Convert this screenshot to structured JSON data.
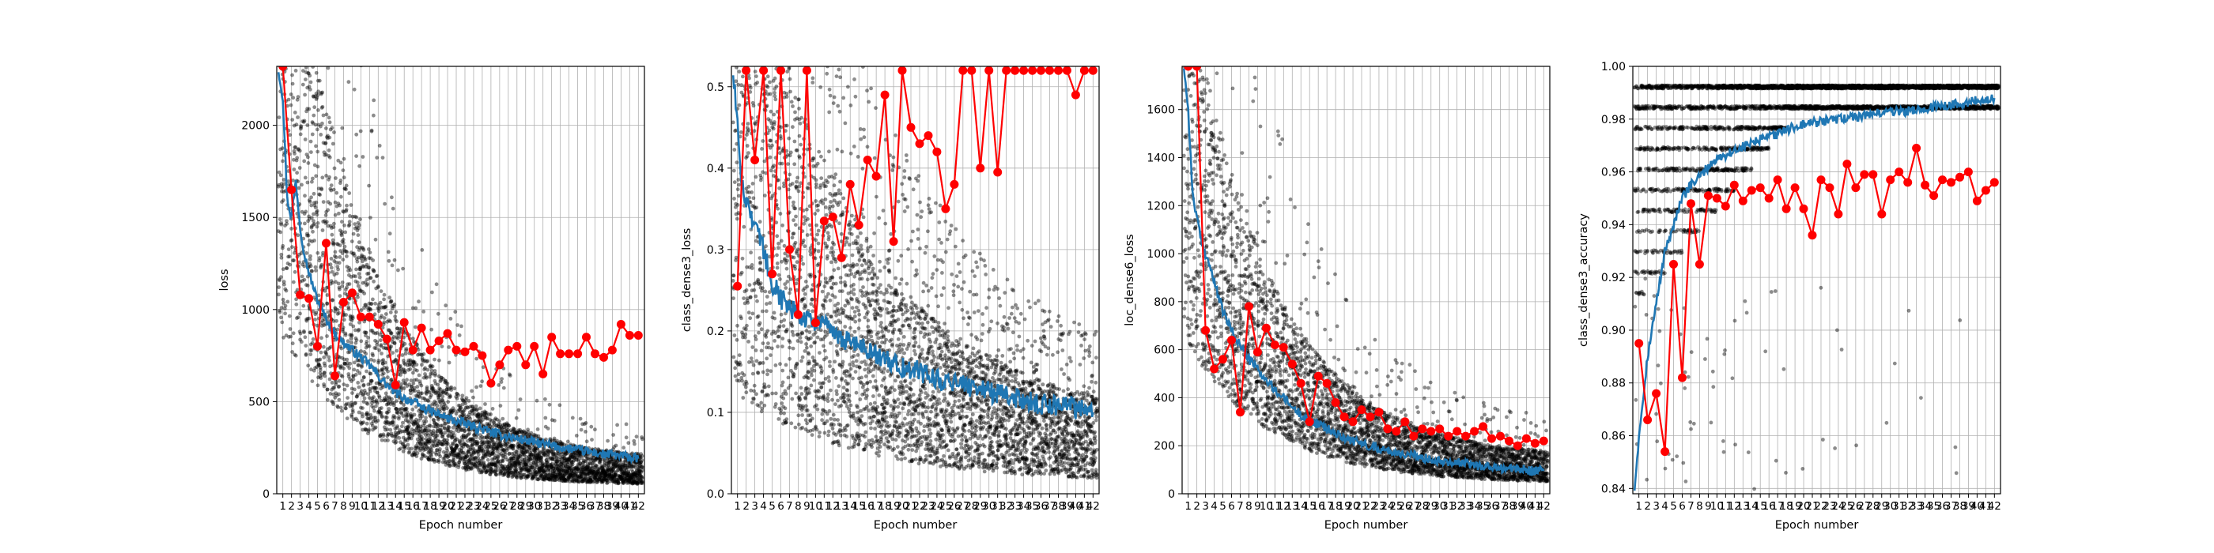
{
  "figure": {
    "colors": {
      "train": "#1f77b4",
      "validation": "#ff0000",
      "batch_points": "#000000"
    }
  },
  "chart_data": [
    {
      "type": "line",
      "xlabel": "Epoch number",
      "ylabel": "loss",
      "xlim": [
        0.3,
        42.7
      ],
      "ylim": [
        0,
        2320
      ],
      "yticks": [
        0,
        500,
        1000,
        1500,
        2000
      ],
      "ytick_labels": [
        "0",
        "500",
        "1000",
        "1500",
        "2000"
      ],
      "xticks": [
        1,
        2,
        3,
        4,
        5,
        6,
        7,
        8,
        9,
        10,
        11,
        12,
        13,
        14,
        15,
        16,
        17,
        18,
        19,
        20,
        21,
        22,
        23,
        24,
        25,
        26,
        27,
        28,
        29,
        30,
        31,
        32,
        33,
        34,
        35,
        36,
        37,
        38,
        39,
        40,
        41,
        42
      ],
      "grid": true,
      "series": [
        {
          "role": "batch_points",
          "style": "scatter",
          "start": 2100,
          "end": 95,
          "decay": 4.5,
          "spread_low": 0.55,
          "spread_high": 0.85,
          "outlier_rate": 0.06,
          "seed": 11
        },
        {
          "role": "train",
          "style": "line",
          "x": [
            0.5,
            1,
            1.5,
            2,
            2.5,
            3,
            3.5,
            4,
            5,
            6,
            7,
            8,
            9,
            10,
            11,
            12,
            13,
            14,
            15,
            16,
            17,
            18,
            19,
            20,
            22,
            24,
            26,
            28,
            30,
            32,
            34,
            36,
            38,
            40,
            42
          ],
          "y": [
            2300,
            2150,
            1600,
            1500,
            1700,
            1450,
            1300,
            1200,
            1050,
            950,
            870,
            820,
            780,
            740,
            700,
            640,
            590,
            550,
            520,
            500,
            470,
            450,
            430,
            410,
            380,
            350,
            320,
            300,
            280,
            260,
            245,
            230,
            215,
            205,
            190
          ]
        },
        {
          "role": "validation",
          "style": "line+markers",
          "x": [
            1,
            2,
            3,
            4,
            5,
            6,
            7,
            8,
            9,
            10,
            11,
            12,
            13,
            14,
            15,
            16,
            17,
            18,
            19,
            20,
            21,
            22,
            23,
            24,
            25,
            26,
            27,
            28,
            29,
            30,
            31,
            32,
            33,
            34,
            35,
            36,
            37,
            38,
            39,
            40,
            41,
            42
          ],
          "y": [
            2320,
            1650,
            1080,
            1060,
            800,
            1360,
            640,
            1040,
            1090,
            960,
            960,
            920,
            840,
            590,
            930,
            780,
            900,
            780,
            830,
            870,
            780,
            770,
            800,
            750,
            600,
            700,
            780,
            800,
            700,
            800,
            650,
            850,
            760,
            760,
            760,
            850,
            760,
            740,
            780,
            920,
            860,
            860
          ]
        }
      ]
    },
    {
      "type": "line",
      "xlabel": "Epoch number",
      "ylabel": "class_dense3_loss",
      "xlim": [
        0.3,
        42.7
      ],
      "ylim": [
        0,
        0.525
      ],
      "yticks": [
        0,
        0.1,
        0.2,
        0.3,
        0.4,
        0.5
      ],
      "ytick_labels": [
        "0.0",
        "0.1",
        "0.2",
        "0.3",
        "0.4",
        "0.5"
      ],
      "xticks": [
        1,
        2,
        3,
        4,
        5,
        6,
        7,
        8,
        9,
        10,
        11,
        12,
        13,
        14,
        15,
        16,
        17,
        18,
        19,
        20,
        21,
        22,
        23,
        24,
        25,
        26,
        27,
        28,
        29,
        30,
        31,
        32,
        33,
        34,
        35,
        36,
        37,
        38,
        39,
        40,
        41,
        42
      ],
      "grid": true,
      "series": [
        {
          "role": "batch_points",
          "style": "scatter",
          "start": 0.42,
          "end": 0.045,
          "decay": 3.0,
          "spread_low": 0.7,
          "spread_high": 0.9,
          "outlier_rate": 0.18,
          "seed": 23
        },
        {
          "role": "train",
          "style": "line",
          "x": [
            0.5,
            1,
            1.5,
            2,
            3,
            4,
            5,
            6,
            7,
            8,
            9,
            10,
            12,
            14,
            16,
            18,
            20,
            22,
            24,
            26,
            28,
            30,
            32,
            34,
            36,
            38,
            40,
            42
          ],
          "y": [
            0.52,
            0.45,
            0.38,
            0.36,
            0.33,
            0.3,
            0.26,
            0.24,
            0.23,
            0.22,
            0.215,
            0.21,
            0.2,
            0.185,
            0.175,
            0.165,
            0.155,
            0.15,
            0.14,
            0.135,
            0.13,
            0.125,
            0.12,
            0.115,
            0.11,
            0.108,
            0.105,
            0.1
          ]
        },
        {
          "role": "validation",
          "style": "line+markers",
          "x": [
            1,
            2,
            3,
            4,
            5,
            6,
            7,
            8,
            9,
            10,
            11,
            12,
            13,
            14,
            15,
            16,
            17,
            18,
            19,
            20,
            21,
            22,
            23,
            24,
            25,
            26,
            27,
            28,
            29,
            30,
            31,
            32,
            33,
            34,
            35,
            36,
            37,
            38,
            39,
            40,
            41,
            42
          ],
          "y": [
            0.255,
            0.52,
            0.41,
            0.52,
            0.27,
            0.52,
            0.3,
            0.22,
            0.52,
            0.21,
            0.335,
            0.34,
            0.29,
            0.38,
            0.33,
            0.41,
            0.39,
            0.49,
            0.31,
            0.52,
            0.45,
            0.43,
            0.44,
            0.42,
            0.35,
            0.38,
            0.52,
            0.52,
            0.4,
            0.52,
            0.395,
            0.52,
            0.52,
            0.52,
            0.52,
            0.52,
            0.52,
            0.52,
            0.52,
            0.49,
            0.52,
            0.52
          ]
        }
      ]
    },
    {
      "type": "line",
      "xlabel": "Epoch number",
      "ylabel": "loc_dense6_loss",
      "xlim": [
        0.3,
        42.7
      ],
      "ylim": [
        0,
        1780
      ],
      "yticks": [
        0,
        200,
        400,
        600,
        800,
        1000,
        1200,
        1400,
        1600
      ],
      "ytick_labels": [
        "0",
        "200",
        "400",
        "600",
        "800",
        "1000",
        "1200",
        "1400",
        "1600"
      ],
      "xticks": [
        1,
        2,
        3,
        4,
        5,
        6,
        7,
        8,
        9,
        10,
        11,
        12,
        13,
        14,
        15,
        16,
        17,
        18,
        19,
        20,
        21,
        22,
        23,
        24,
        25,
        26,
        27,
        28,
        29,
        30,
        31,
        32,
        33,
        34,
        35,
        36,
        37,
        38,
        39,
        40,
        41,
        42
      ],
      "grid": true,
      "series": [
        {
          "role": "batch_points",
          "style": "scatter",
          "start": 1350,
          "end": 85,
          "decay": 4.3,
          "spread_low": 0.5,
          "spread_high": 0.75,
          "outlier_rate": 0.05,
          "seed": 37
        },
        {
          "role": "train",
          "style": "line",
          "x": [
            0.5,
            1,
            1.5,
            2,
            2.5,
            3,
            3.5,
            4,
            5,
            6,
            7,
            8,
            9,
            10,
            11,
            12,
            13,
            14,
            16,
            18,
            20,
            22,
            24,
            26,
            28,
            30,
            32,
            34,
            36,
            38,
            40,
            42
          ],
          "y": [
            1780,
            1600,
            1250,
            1150,
            1050,
            1000,
            950,
            880,
            760,
            680,
            620,
            560,
            520,
            470,
            430,
            400,
            360,
            330,
            290,
            250,
            220,
            200,
            180,
            165,
            150,
            140,
            130,
            120,
            110,
            105,
            100,
            95
          ]
        },
        {
          "role": "validation",
          "style": "line+markers",
          "x": [
            1,
            2,
            3,
            4,
            5,
            6,
            7,
            8,
            9,
            10,
            11,
            12,
            13,
            14,
            15,
            16,
            17,
            18,
            19,
            20,
            21,
            22,
            23,
            24,
            25,
            26,
            27,
            28,
            29,
            30,
            31,
            32,
            33,
            34,
            35,
            36,
            37,
            38,
            39,
            40,
            41,
            42
          ],
          "y": [
            1780,
            1780,
            680,
            520,
            560,
            640,
            340,
            780,
            590,
            690,
            620,
            610,
            540,
            460,
            300,
            490,
            460,
            380,
            320,
            300,
            350,
            320,
            340,
            270,
            260,
            300,
            240,
            270,
            260,
            270,
            240,
            260,
            240,
            260,
            280,
            230,
            240,
            220,
            200,
            230,
            210,
            220
          ]
        }
      ]
    },
    {
      "type": "line",
      "xlabel": "Epoch number",
      "ylabel": "class_dense3_accuracy",
      "xlim": [
        0.3,
        42.7
      ],
      "ylim": [
        0.838,
        1.0
      ],
      "yticks": [
        0.84,
        0.86,
        0.88,
        0.9,
        0.92,
        0.94,
        0.96,
        0.98,
        1.0
      ],
      "ytick_labels": [
        "0.84",
        "0.86",
        "0.88",
        "0.90",
        "0.92",
        "0.94",
        "0.96",
        "0.98",
        "1.00"
      ],
      "xticks": [
        1,
        2,
        3,
        4,
        5,
        6,
        7,
        8,
        9,
        10,
        11,
        12,
        13,
        14,
        15,
        16,
        17,
        18,
        19,
        20,
        21,
        22,
        23,
        24,
        25,
        26,
        27,
        28,
        29,
        30,
        31,
        32,
        33,
        34,
        35,
        36,
        37,
        38,
        39,
        40,
        41,
        42
      ],
      "grid": true,
      "series": [
        {
          "role": "batch_points",
          "style": "scatter",
          "levels": [
            0.9922,
            0.9844,
            0.9766,
            0.9688,
            0.9609,
            0.9531,
            0.9453,
            0.9375,
            0.9297,
            0.9219,
            0.9141,
            0.9062
          ],
          "seed": 41
        },
        {
          "role": "train",
          "style": "line",
          "x": [
            0.5,
            1,
            1.5,
            2,
            2.5,
            3,
            3.5,
            4,
            5,
            6,
            7,
            8,
            9,
            10,
            12,
            14,
            16,
            18,
            20,
            22,
            24,
            26,
            28,
            30,
            32,
            34,
            36,
            38,
            40,
            42
          ],
          "y": [
            0.84,
            0.86,
            0.875,
            0.89,
            0.9,
            0.91,
            0.92,
            0.93,
            0.94,
            0.95,
            0.955,
            0.958,
            0.962,
            0.965,
            0.968,
            0.971,
            0.973,
            0.976,
            0.978,
            0.979,
            0.98,
            0.981,
            0.982,
            0.983,
            0.983,
            0.984,
            0.985,
            0.986,
            0.987,
            0.988
          ]
        },
        {
          "role": "validation",
          "style": "line+markers",
          "x": [
            1,
            2,
            3,
            4,
            5,
            6,
            7,
            8,
            9,
            10,
            11,
            12,
            13,
            14,
            15,
            16,
            17,
            18,
            19,
            20,
            21,
            22,
            23,
            24,
            25,
            26,
            27,
            28,
            29,
            30,
            31,
            32,
            33,
            34,
            35,
            36,
            37,
            38,
            39,
            40,
            41,
            42
          ],
          "y": [
            0.895,
            0.866,
            0.876,
            0.854,
            0.925,
            0.882,
            0.948,
            0.925,
            0.951,
            0.95,
            0.947,
            0.955,
            0.949,
            0.953,
            0.954,
            0.95,
            0.957,
            0.946,
            0.954,
            0.946,
            0.936,
            0.957,
            0.954,
            0.944,
            0.963,
            0.954,
            0.959,
            0.959,
            0.944,
            0.957,
            0.96,
            0.956,
            0.969,
            0.955,
            0.951,
            0.957,
            0.956,
            0.958,
            0.96,
            0.949,
            0.953,
            0.956
          ]
        }
      ]
    }
  ]
}
